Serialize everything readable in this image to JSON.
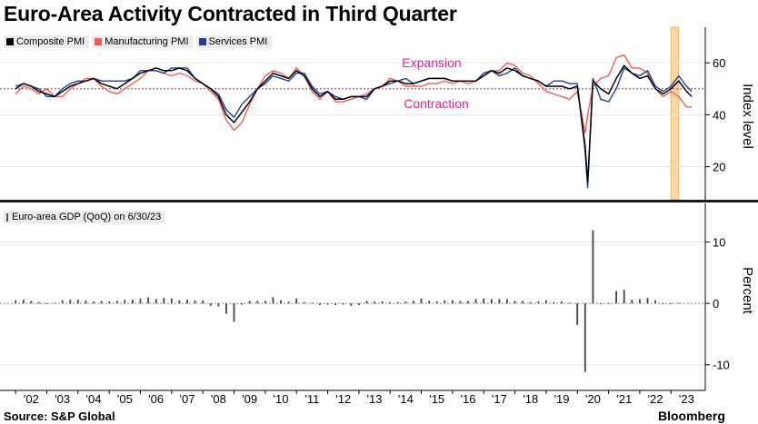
{
  "title": "Euro-Area Activity Contracted in Third Quarter",
  "source": "Source: S&P Global",
  "brand": "Bloomberg",
  "colors": {
    "composite": "#000000",
    "manufacturing": "#f0605a",
    "services": "#1f3f9f",
    "gdp": "#444444",
    "reference": "#e0248c",
    "highlight": "#f7d9a1"
  },
  "chart_data": [
    {
      "type": "line",
      "ylabel": "Index level",
      "ylim": [
        8,
        73
      ],
      "yticks": [
        20,
        40,
        60
      ],
      "reference_line": 50,
      "annotations": [
        "Expansion",
        "Contraction"
      ],
      "highlight_x": [
        2023.0,
        2023.25
      ],
      "x": [
        2002.0,
        2002.25,
        2002.5,
        2002.75,
        2003.0,
        2003.25,
        2003.5,
        2003.75,
        2004.0,
        2004.25,
        2004.5,
        2004.75,
        2005.0,
        2005.25,
        2005.5,
        2005.75,
        2006.0,
        2006.25,
        2006.5,
        2006.75,
        2007.0,
        2007.25,
        2007.5,
        2007.75,
        2008.0,
        2008.25,
        2008.5,
        2008.75,
        2009.0,
        2009.25,
        2009.5,
        2009.75,
        2010.0,
        2010.25,
        2010.5,
        2010.75,
        2011.0,
        2011.25,
        2011.5,
        2011.75,
        2012.0,
        2012.25,
        2012.5,
        2012.75,
        2013.0,
        2013.25,
        2013.5,
        2013.75,
        2014.0,
        2014.25,
        2014.5,
        2014.75,
        2015.0,
        2015.25,
        2015.5,
        2015.75,
        2016.0,
        2016.25,
        2016.5,
        2016.75,
        2017.0,
        2017.25,
        2017.5,
        2017.75,
        2018.0,
        2018.25,
        2018.5,
        2018.75,
        2019.0,
        2019.25,
        2019.5,
        2019.75,
        2020.0,
        2020.25,
        2020.33,
        2020.5,
        2020.75,
        2021.0,
        2021.25,
        2021.5,
        2021.75,
        2022.0,
        2022.25,
        2022.5,
        2022.75,
        2023.0,
        2023.25,
        2023.5,
        2023.67
      ],
      "series": [
        {
          "name": "Composite PMI",
          "values": [
            50,
            52,
            51,
            49,
            48,
            47,
            49,
            51,
            52,
            53,
            54,
            52,
            51,
            50,
            52,
            54,
            56,
            57,
            58,
            57,
            57,
            58,
            57,
            54,
            52,
            50,
            47,
            40,
            37,
            41,
            45,
            50,
            53,
            56,
            55,
            54,
            57,
            55,
            50,
            47,
            49,
            46,
            46,
            47,
            47,
            47,
            50,
            51,
            53,
            53,
            52,
            52,
            53,
            54,
            54,
            54,
            53,
            53,
            53,
            53,
            55,
            57,
            56,
            58,
            57,
            55,
            54,
            53,
            51,
            51,
            51,
            50,
            51,
            28,
            14,
            53,
            50,
            48,
            54,
            59,
            56,
            54,
            55,
            50,
            48,
            50,
            53,
            49,
            47
          ]
        },
        {
          "name": "Manufacturing PMI",
          "values": [
            48,
            51,
            50,
            48,
            50,
            47,
            47,
            50,
            52,
            54,
            54,
            51,
            49,
            48,
            50,
            52,
            54,
            57,
            57,
            56,
            55,
            56,
            55,
            53,
            52,
            49,
            46,
            38,
            34,
            37,
            44,
            50,
            55,
            57,
            56,
            54,
            58,
            55,
            49,
            46,
            49,
            45,
            45,
            46,
            47,
            48,
            50,
            51,
            54,
            53,
            51,
            51,
            51,
            52,
            52,
            53,
            52,
            53,
            52,
            53,
            55,
            57,
            57,
            60,
            59,
            56,
            55,
            52,
            49,
            48,
            47,
            46,
            49,
            33,
            40,
            51,
            54,
            55,
            62,
            63,
            58,
            58,
            56,
            50,
            47,
            49,
            47,
            43,
            43
          ]
        },
        {
          "name": "Services PMI",
          "values": [
            51,
            52,
            51,
            50,
            47,
            47,
            50,
            52,
            53,
            53,
            54,
            53,
            53,
            53,
            53,
            54,
            57,
            57,
            57,
            56,
            58,
            58,
            58,
            54,
            52,
            50,
            48,
            42,
            39,
            44,
            47,
            50,
            52,
            55,
            54,
            53,
            56,
            56,
            51,
            48,
            49,
            47,
            46,
            47,
            47,
            46,
            50,
            51,
            52,
            53,
            54,
            52,
            53,
            54,
            54,
            54,
            53,
            53,
            53,
            53,
            56,
            57,
            55,
            56,
            58,
            55,
            54,
            53,
            51,
            53,
            53,
            52,
            52,
            26,
            12,
            54,
            46,
            45,
            50,
            58,
            56,
            55,
            57,
            51,
            49,
            51,
            55,
            51,
            49
          ]
        }
      ]
    },
    {
      "type": "bar",
      "title": "Euro-area GDP (QoQ) on 6/30/23",
      "ylabel": "Percent",
      "ylim": [
        -13,
        16
      ],
      "yticks": [
        -10,
        0,
        10
      ],
      "xticks": [
        "'02",
        "'03",
        "'04",
        "'05",
        "'06",
        "'07",
        "'08",
        "'09",
        "'10",
        "'11",
        "'12",
        "'13",
        "'14",
        "'15",
        "'16",
        "'17",
        "'18",
        "'19",
        "'20",
        "'21",
        "'22",
        "'23"
      ],
      "x": [
        2002.0,
        2002.25,
        2002.5,
        2002.75,
        2003.0,
        2003.25,
        2003.5,
        2003.75,
        2004.0,
        2004.25,
        2004.5,
        2004.75,
        2005.0,
        2005.25,
        2005.5,
        2005.75,
        2006.0,
        2006.25,
        2006.5,
        2006.75,
        2007.0,
        2007.25,
        2007.5,
        2007.75,
        2008.0,
        2008.25,
        2008.5,
        2008.75,
        2009.0,
        2009.25,
        2009.5,
        2009.75,
        2010.0,
        2010.25,
        2010.5,
        2010.75,
        2011.0,
        2011.25,
        2011.5,
        2011.75,
        2012.0,
        2012.25,
        2012.5,
        2012.75,
        2013.0,
        2013.25,
        2013.5,
        2013.75,
        2014.0,
        2014.25,
        2014.5,
        2014.75,
        2015.0,
        2015.25,
        2015.5,
        2015.75,
        2016.0,
        2016.25,
        2016.5,
        2016.75,
        2017.0,
        2017.25,
        2017.5,
        2017.75,
        2018.0,
        2018.25,
        2018.5,
        2018.75,
        2019.0,
        2019.25,
        2019.5,
        2019.75,
        2020.0,
        2020.25,
        2020.5,
        2020.75,
        2021.0,
        2021.25,
        2021.5,
        2021.75,
        2022.0,
        2022.25,
        2022.5,
        2022.75,
        2023.0,
        2023.25
      ],
      "values": [
        0.5,
        0.6,
        0.4,
        0.2,
        0.0,
        0.1,
        0.5,
        0.6,
        0.6,
        0.5,
        0.3,
        0.4,
        0.3,
        0.4,
        0.6,
        0.6,
        0.8,
        1.0,
        0.7,
        0.9,
        0.8,
        0.5,
        0.6,
        0.5,
        0.5,
        -0.4,
        -0.5,
        -1.7,
        -3.0,
        -0.2,
        0.4,
        0.4,
        0.4,
        1.0,
        0.5,
        0.3,
        0.8,
        0.2,
        0.1,
        -0.3,
        -0.2,
        -0.3,
        -0.2,
        -0.4,
        -0.3,
        0.4,
        0.3,
        0.3,
        0.2,
        0.2,
        0.3,
        0.4,
        0.8,
        0.4,
        0.3,
        0.5,
        0.5,
        0.4,
        0.4,
        0.7,
        0.8,
        0.7,
        0.7,
        0.7,
        0.4,
        0.4,
        0.2,
        0.3,
        0.5,
        0.2,
        0.3,
        0.1,
        -3.5,
        -11.2,
        11.9,
        -0.1,
        0.0,
        2.0,
        2.2,
        0.6,
        0.7,
        0.9,
        0.5,
        -0.1,
        0.0,
        0.1
      ]
    }
  ]
}
